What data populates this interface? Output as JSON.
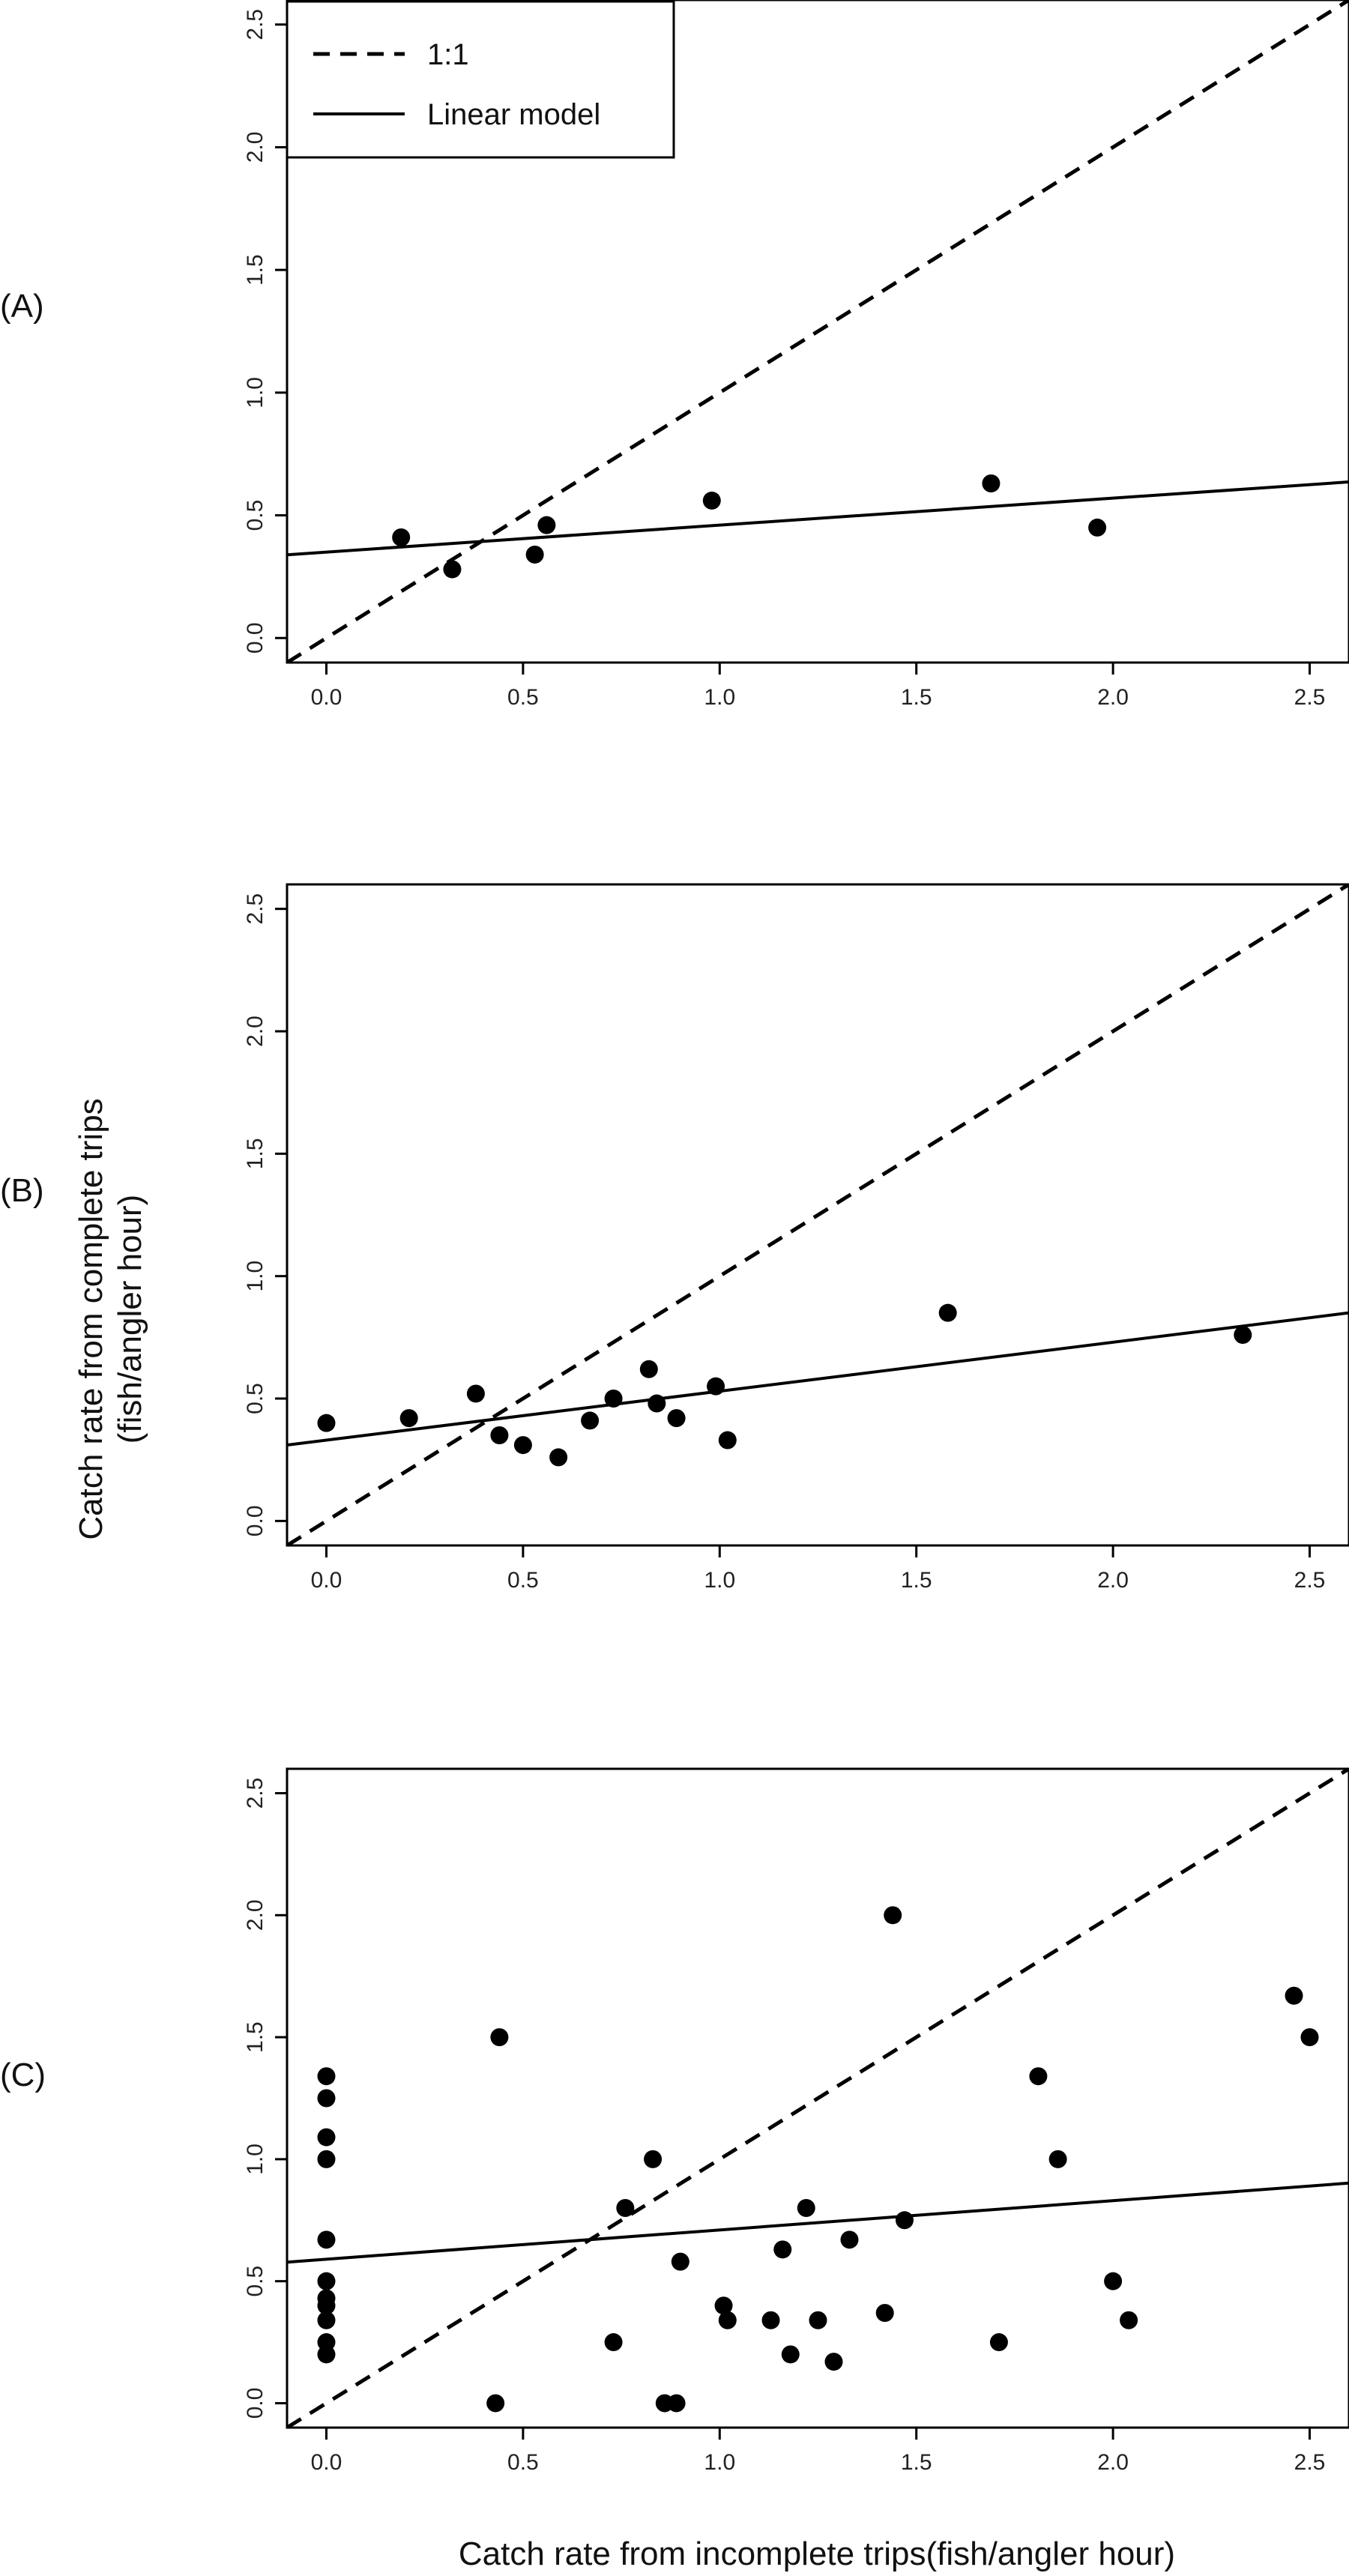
{
  "chart_data": [
    {
      "type": "scatter",
      "panel_label": "(A)",
      "xlim": [
        -0.1,
        2.6
      ],
      "ylim": [
        -0.1,
        2.6
      ],
      "x_ticks": [
        "0.0",
        "0.5",
        "1.0",
        "1.5",
        "2.0",
        "2.5"
      ],
      "y_ticks": [
        "0.0",
        "0.5",
        "1.0",
        "1.5",
        "2.0",
        "2.5"
      ],
      "points": [
        {
          "x": 0.19,
          "y": 0.41
        },
        {
          "x": 0.32,
          "y": 0.28
        },
        {
          "x": 0.53,
          "y": 0.34
        },
        {
          "x": 0.56,
          "y": 0.46
        },
        {
          "x": 0.98,
          "y": 0.56
        },
        {
          "x": 1.69,
          "y": 0.63
        },
        {
          "x": 1.96,
          "y": 0.45
        }
      ],
      "reference_line": {
        "name": "1:1",
        "intercept": 0.0,
        "slope": 1.0
      },
      "linear_model": {
        "name": "Linear model",
        "intercept": 0.35,
        "slope": 0.11
      },
      "legend": {
        "position": "top-left",
        "entries": [
          "1:1",
          "Linear model"
        ]
      },
      "grid": false
    },
    {
      "type": "scatter",
      "panel_label": "(B)",
      "xlim": [
        -0.1,
        2.6
      ],
      "ylim": [
        -0.1,
        2.6
      ],
      "x_ticks": [
        "0.0",
        "0.5",
        "1.0",
        "1.5",
        "2.0",
        "2.5"
      ],
      "y_ticks": [
        "0.0",
        "0.5",
        "1.0",
        "1.5",
        "2.0",
        "2.5"
      ],
      "points": [
        {
          "x": 0.0,
          "y": 0.4
        },
        {
          "x": 0.21,
          "y": 0.42
        },
        {
          "x": 0.38,
          "y": 0.52
        },
        {
          "x": 0.44,
          "y": 0.35
        },
        {
          "x": 0.5,
          "y": 0.31
        },
        {
          "x": 0.59,
          "y": 0.26
        },
        {
          "x": 0.67,
          "y": 0.41
        },
        {
          "x": 0.73,
          "y": 0.5
        },
        {
          "x": 0.82,
          "y": 0.62
        },
        {
          "x": 0.84,
          "y": 0.48
        },
        {
          "x": 0.89,
          "y": 0.42
        },
        {
          "x": 0.99,
          "y": 0.55
        },
        {
          "x": 1.02,
          "y": 0.33
        },
        {
          "x": 1.58,
          "y": 0.85
        },
        {
          "x": 2.33,
          "y": 0.76
        }
      ],
      "reference_line": {
        "name": "1:1",
        "intercept": 0.0,
        "slope": 1.0
      },
      "linear_model": {
        "name": "Linear model",
        "intercept": 0.33,
        "slope": 0.2
      },
      "grid": false
    },
    {
      "type": "scatter",
      "panel_label": "(C)",
      "xlim": [
        -0.1,
        2.6
      ],
      "ylim": [
        -0.1,
        2.6
      ],
      "x_ticks": [
        "0.0",
        "0.5",
        "1.0",
        "1.5",
        "2.0",
        "2.5"
      ],
      "y_ticks": [
        "0.0",
        "0.5",
        "1.0",
        "1.5",
        "2.0",
        "2.5"
      ],
      "points": [
        {
          "x": 0.0,
          "y": 1.34
        },
        {
          "x": 0.0,
          "y": 1.25
        },
        {
          "x": 0.0,
          "y": 1.09
        },
        {
          "x": 0.0,
          "y": 1.0
        },
        {
          "x": 0.0,
          "y": 0.67
        },
        {
          "x": 0.0,
          "y": 0.5
        },
        {
          "x": 0.0,
          "y": 0.43
        },
        {
          "x": 0.0,
          "y": 0.4
        },
        {
          "x": 0.0,
          "y": 0.34
        },
        {
          "x": 0.0,
          "y": 0.25
        },
        {
          "x": 0.0,
          "y": 0.2
        },
        {
          "x": 0.43,
          "y": 0.0
        },
        {
          "x": 0.44,
          "y": 1.5
        },
        {
          "x": 0.73,
          "y": 0.25
        },
        {
          "x": 0.76,
          "y": 0.8
        },
        {
          "x": 0.83,
          "y": 1.0
        },
        {
          "x": 0.86,
          "y": 0.0
        },
        {
          "x": 0.89,
          "y": 0.0
        },
        {
          "x": 0.9,
          "y": 0.58
        },
        {
          "x": 1.01,
          "y": 0.4
        },
        {
          "x": 1.02,
          "y": 0.34
        },
        {
          "x": 1.13,
          "y": 0.34
        },
        {
          "x": 1.16,
          "y": 0.63
        },
        {
          "x": 1.18,
          "y": 0.2
        },
        {
          "x": 1.22,
          "y": 0.8
        },
        {
          "x": 1.25,
          "y": 0.34
        },
        {
          "x": 1.29,
          "y": 0.17
        },
        {
          "x": 1.33,
          "y": 0.67
        },
        {
          "x": 1.42,
          "y": 0.37
        },
        {
          "x": 1.44,
          "y": 2.0
        },
        {
          "x": 1.47,
          "y": 0.75
        },
        {
          "x": 1.71,
          "y": 0.25
        },
        {
          "x": 1.81,
          "y": 1.34
        },
        {
          "x": 1.86,
          "y": 1.0
        },
        {
          "x": 2.0,
          "y": 0.5
        },
        {
          "x": 2.04,
          "y": 0.34
        },
        {
          "x": 2.46,
          "y": 1.67
        },
        {
          "x": 2.5,
          "y": 1.5
        }
      ],
      "reference_line": {
        "name": "1:1",
        "intercept": 0.0,
        "slope": 1.0
      },
      "linear_model": {
        "name": "Linear model",
        "intercept": 0.59,
        "slope": 0.12
      },
      "grid": false
    }
  ],
  "ylabel_line1": "Catch rate from complete trips",
  "ylabel_line2": "(fish/angler hour)",
  "xlabel": "Catch rate from incomplete trips(fish/angler hour)",
  "legend": {
    "entry_1": "1:1",
    "entry_2": "Linear model"
  }
}
